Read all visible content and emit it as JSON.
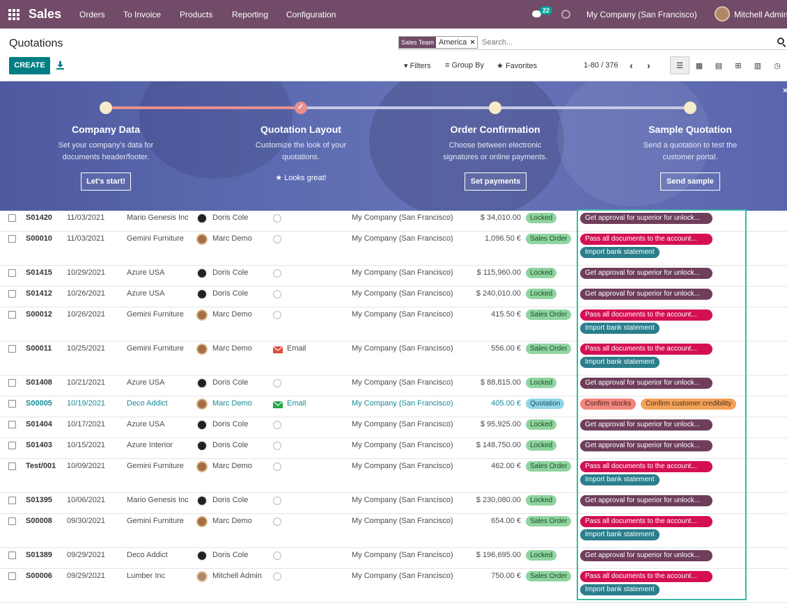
{
  "topbar": {
    "brand": "Sales",
    "menu": [
      "Orders",
      "To Invoice",
      "Products",
      "Reporting",
      "Configuration"
    ],
    "message_count": "22",
    "company": "My Company (San Francisco)",
    "user": "Mitchell Admin"
  },
  "control_panel": {
    "breadcrumb": "Quotations",
    "create_label": "CREATE",
    "facet_label": "Sales Team",
    "facet_value": "America",
    "facet_remove": "×",
    "search_placeholder": "Search...",
    "filters_label": "Filters",
    "groupby_label": "Group By",
    "favorites_label": "Favorites",
    "pager": "1-80 / 376"
  },
  "onboarding": {
    "steps": [
      {
        "title": "Company Data",
        "desc1": "Set your company's data for",
        "desc2": "documents header/footer.",
        "button": "Let's start!"
      },
      {
        "title": "Quotation Layout",
        "desc1": "Customize the look of your",
        "desc2": "quotations.",
        "done_text": "Looks great!"
      },
      {
        "title": "Order Confirmation",
        "desc1": "Choose between electronic",
        "desc2": "signatures or online payments.",
        "button": "Set payments"
      },
      {
        "title": "Sample Quotation",
        "desc1": "Send a quotation to test the",
        "desc2": "customer portal.",
        "button": "Send sample"
      }
    ],
    "close": "×"
  },
  "rows": [
    {
      "number": "S01420",
      "date": "11/03/2021",
      "customer": "Mario Genesis Inc",
      "salesperson": "Doris Cole",
      "company": "My Company (San Francisco)",
      "total": "$ 34,010.00",
      "status": "Locked",
      "tags": [
        "Get approval for superior for unlock..."
      ]
    },
    {
      "number": "S00010",
      "date": "11/03/2021",
      "customer": "Gemini Furniture",
      "salesperson": "Marc Demo",
      "company": "My Company (San Francisco)",
      "total": "1,096.50 €",
      "status": "Sales Order",
      "tags": [
        "Pass all documents to the account...",
        "Import bank statement"
      ]
    },
    {
      "number": "S01415",
      "date": "10/29/2021",
      "customer": "Azure USA",
      "salesperson": "Doris Cole",
      "company": "My Company (San Francisco)",
      "total": "$ 115,960.00",
      "status": "Locked",
      "tags": [
        "Get approval for superior for unlock..."
      ]
    },
    {
      "number": "S01412",
      "date": "10/26/2021",
      "customer": "Azure USA",
      "salesperson": "Doris Cole",
      "company": "My Company (San Francisco)",
      "total": "$ 240,010.00",
      "status": "Locked",
      "tags": [
        "Get approval for superior for unlock..."
      ]
    },
    {
      "number": "S00012",
      "date": "10/26/2021",
      "customer": "Gemini Furniture",
      "salesperson": "Marc Demo",
      "company": "My Company (San Francisco)",
      "total": "415.50 €",
      "status": "Sales Order",
      "tags": [
        "Pass all documents to the account...",
        "Import bank statement"
      ]
    },
    {
      "number": "S00011",
      "date": "10/25/2021",
      "customer": "Gemini Furniture",
      "salesperson": "Marc Demo",
      "activity": "Email",
      "company": "My Company (San Francisco)",
      "total": "556.00 €",
      "status": "Sales Order",
      "tags": [
        "Pass all documents to the account...",
        "Import bank statement"
      ]
    },
    {
      "number": "S01408",
      "date": "10/21/2021",
      "customer": "Azure USA",
      "salesperson": "Doris Cole",
      "company": "My Company (San Francisco)",
      "total": "$ 88,815.00",
      "status": "Locked",
      "tags": [
        "Get approval for superior for unlock..."
      ]
    },
    {
      "number": "S00005",
      "date": "10/19/2021",
      "customer": "Deco Addict",
      "salesperson": "Marc Demo",
      "activity": "Email",
      "company": "My Company (San Francisco)",
      "total": "405.00 €",
      "status": "Quotation",
      "tags": [
        "Confirm stocks",
        "Confirm customer credibility"
      ]
    },
    {
      "number": "S01404",
      "date": "10/17/2021",
      "customer": "Azure USA",
      "salesperson": "Doris Cole",
      "company": "My Company (San Francisco)",
      "total": "$ 95,925.00",
      "status": "Locked",
      "tags": [
        "Get approval for superior for unlock..."
      ]
    },
    {
      "number": "S01403",
      "date": "10/15/2021",
      "customer": "Azure Interior",
      "salesperson": "Doris Cole",
      "company": "My Company (San Francisco)",
      "total": "$ 148,750.00",
      "status": "Locked",
      "tags": [
        "Get approval for superior for unlock..."
      ]
    },
    {
      "number": "Test/001",
      "date": "10/09/2021",
      "customer": "Gemini Furniture",
      "salesperson": "Marc Demo",
      "company": "My Company (San Francisco)",
      "total": "462.00 €",
      "status": "Sales Order",
      "tags": [
        "Pass all documents to the account...",
        "Import bank statement"
      ]
    },
    {
      "number": "S01395",
      "date": "10/06/2021",
      "customer": "Mario Genesis Inc",
      "salesperson": "Doris Cole",
      "company": "My Company (San Francisco)",
      "total": "$ 230,080.00",
      "status": "Locked",
      "tags": [
        "Get approval for superior for unlock..."
      ]
    },
    {
      "number": "S00008",
      "date": "09/30/2021",
      "customer": "Gemini Furniture",
      "salesperson": "Marc Demo",
      "company": "My Company (San Francisco)",
      "total": "654.00 €",
      "status": "Sales Order",
      "tags": [
        "Pass all documents to the account...",
        "Import bank statement"
      ]
    },
    {
      "number": "S01389",
      "date": "09/29/2021",
      "customer": "Deco Addict",
      "salesperson": "Doris Cole",
      "company": "My Company (San Francisco)",
      "total": "$ 196,695.00",
      "status": "Locked",
      "tags": [
        "Get approval for superior for unlock..."
      ]
    },
    {
      "number": "S00006",
      "date": "09/29/2021",
      "customer": "Lumber Inc",
      "salesperson": "Mitchell Admin",
      "company": "My Company (San Francisco)",
      "total": "750.00 €",
      "status": "Sales Order",
      "tags": [
        "Pass all documents to the account...",
        "Import bank statement"
      ]
    }
  ]
}
